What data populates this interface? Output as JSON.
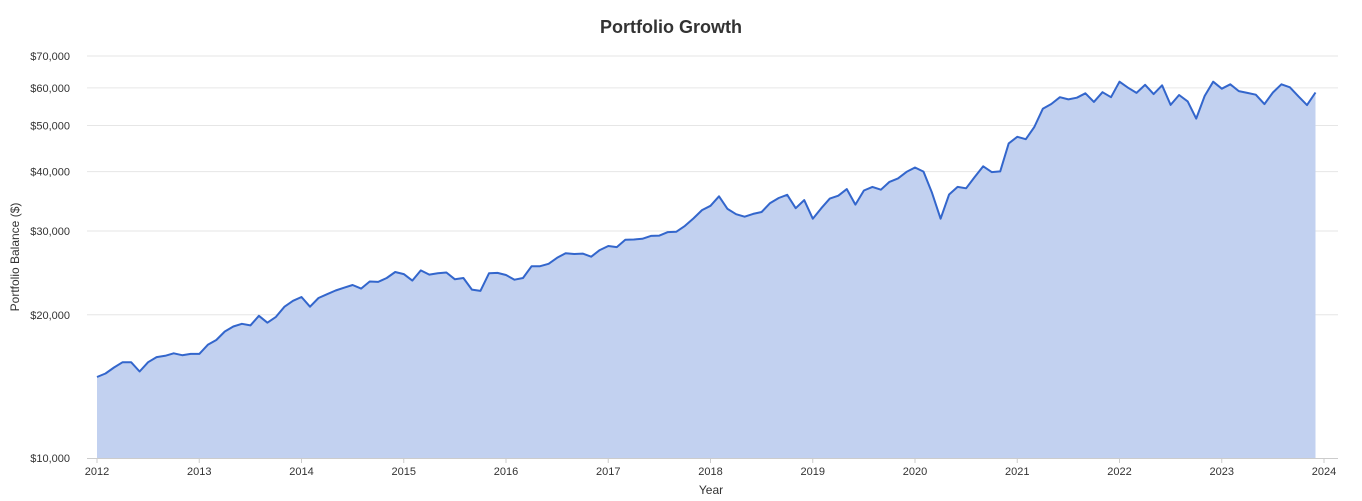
{
  "chart_data": {
    "type": "area",
    "title": "Portfolio Growth",
    "xlabel": "Year",
    "ylabel": "Portfolio Balance ($)",
    "y_scale": "log",
    "ylim": [
      10000,
      70000
    ],
    "xlim": [
      "2012-01",
      "2024-01"
    ],
    "grid": true,
    "legend": "none",
    "colors": {
      "line": "#3366cc",
      "fill": "#c2d1f0",
      "grid": "#e6e6e6",
      "axis": "#cccccc"
    },
    "y_ticks": [
      {
        "value": 10000,
        "label": "$10,000"
      },
      {
        "value": 20000,
        "label": "$20,000"
      },
      {
        "value": 30000,
        "label": "$30,000"
      },
      {
        "value": 40000,
        "label": "$40,000"
      },
      {
        "value": 50000,
        "label": "$50,000"
      },
      {
        "value": 60000,
        "label": "$60,000"
      },
      {
        "value": 70000,
        "label": "$70,000"
      }
    ],
    "x_ticks": [
      "2012",
      "2013",
      "2014",
      "2015",
      "2016",
      "2017",
      "2018",
      "2019",
      "2020",
      "2021",
      "2022",
      "2023",
      "2024"
    ],
    "series": [
      {
        "values": [
          {
            "x": "2012-01",
            "y": 14800
          },
          {
            "x": "2012-02",
            "y": 15050
          },
          {
            "x": "2012-03",
            "y": 15500
          },
          {
            "x": "2012-04",
            "y": 15900
          },
          {
            "x": "2012-05",
            "y": 15900
          },
          {
            "x": "2012-06",
            "y": 15200
          },
          {
            "x": "2012-07",
            "y": 15900
          },
          {
            "x": "2012-08",
            "y": 16300
          },
          {
            "x": "2012-09",
            "y": 16400
          },
          {
            "x": "2012-10",
            "y": 16600
          },
          {
            "x": "2012-11",
            "y": 16450
          },
          {
            "x": "2012-12",
            "y": 16550
          },
          {
            "x": "2013-01",
            "y": 16550
          },
          {
            "x": "2013-02",
            "y": 17300
          },
          {
            "x": "2013-03",
            "y": 17700
          },
          {
            "x": "2013-04",
            "y": 18450
          },
          {
            "x": "2013-05",
            "y": 18900
          },
          {
            "x": "2013-06",
            "y": 19150
          },
          {
            "x": "2013-07",
            "y": 19000
          },
          {
            "x": "2013-08",
            "y": 19900
          },
          {
            "x": "2013-09",
            "y": 19250
          },
          {
            "x": "2013-10",
            "y": 19800
          },
          {
            "x": "2013-11",
            "y": 20800
          },
          {
            "x": "2013-12",
            "y": 21400
          },
          {
            "x": "2014-01",
            "y": 21800
          },
          {
            "x": "2014-02",
            "y": 20800
          },
          {
            "x": "2014-03",
            "y": 21700
          },
          {
            "x": "2014-04",
            "y": 22100
          },
          {
            "x": "2014-05",
            "y": 22500
          },
          {
            "x": "2014-06",
            "y": 22800
          },
          {
            "x": "2014-07",
            "y": 23100
          },
          {
            "x": "2014-08",
            "y": 22700
          },
          {
            "x": "2014-09",
            "y": 23500
          },
          {
            "x": "2014-10",
            "y": 23450
          },
          {
            "x": "2014-11",
            "y": 23900
          },
          {
            "x": "2014-12",
            "y": 24600
          },
          {
            "x": "2015-01",
            "y": 24350
          },
          {
            "x": "2015-02",
            "y": 23600
          },
          {
            "x": "2015-03",
            "y": 24800
          },
          {
            "x": "2015-04",
            "y": 24300
          },
          {
            "x": "2015-05",
            "y": 24450
          },
          {
            "x": "2015-06",
            "y": 24550
          },
          {
            "x": "2015-07",
            "y": 23750
          },
          {
            "x": "2015-08",
            "y": 23900
          },
          {
            "x": "2015-09",
            "y": 22600
          },
          {
            "x": "2015-10",
            "y": 22450
          },
          {
            "x": "2015-11",
            "y": 24450
          },
          {
            "x": "2015-12",
            "y": 24500
          },
          {
            "x": "2016-01",
            "y": 24250
          },
          {
            "x": "2016-02",
            "y": 23700
          },
          {
            "x": "2016-03",
            "y": 23900
          },
          {
            "x": "2016-04",
            "y": 25300
          },
          {
            "x": "2016-05",
            "y": 25300
          },
          {
            "x": "2016-06",
            "y": 25600
          },
          {
            "x": "2016-07",
            "y": 26350
          },
          {
            "x": "2016-08",
            "y": 26950
          },
          {
            "x": "2016-09",
            "y": 26850
          },
          {
            "x": "2016-10",
            "y": 26900
          },
          {
            "x": "2016-11",
            "y": 26500
          },
          {
            "x": "2016-12",
            "y": 27350
          },
          {
            "x": "2017-01",
            "y": 27900
          },
          {
            "x": "2017-02",
            "y": 27750
          },
          {
            "x": "2017-03",
            "y": 28750
          },
          {
            "x": "2017-04",
            "y": 28800
          },
          {
            "x": "2017-05",
            "y": 28900
          },
          {
            "x": "2017-06",
            "y": 29300
          },
          {
            "x": "2017-07",
            "y": 29350
          },
          {
            "x": "2017-08",
            "y": 29850
          },
          {
            "x": "2017-09",
            "y": 29900
          },
          {
            "x": "2017-10",
            "y": 30750
          },
          {
            "x": "2017-11",
            "y": 31900
          },
          {
            "x": "2017-12",
            "y": 33200
          },
          {
            "x": "2018-01",
            "y": 33900
          },
          {
            "x": "2018-02",
            "y": 35500
          },
          {
            "x": "2018-03",
            "y": 33400
          },
          {
            "x": "2018-04",
            "y": 32550
          },
          {
            "x": "2018-05",
            "y": 32150
          },
          {
            "x": "2018-06",
            "y": 32600
          },
          {
            "x": "2018-07",
            "y": 32900
          },
          {
            "x": "2018-08",
            "y": 34350
          },
          {
            "x": "2018-09",
            "y": 35200
          },
          {
            "x": "2018-10",
            "y": 35750
          },
          {
            "x": "2018-11",
            "y": 33500
          },
          {
            "x": "2018-12",
            "y": 34850
          },
          {
            "x": "2019-01",
            "y": 31850
          },
          {
            "x": "2019-02",
            "y": 33500
          },
          {
            "x": "2019-03",
            "y": 35100
          },
          {
            "x": "2019-04",
            "y": 35600
          },
          {
            "x": "2019-05",
            "y": 36750
          },
          {
            "x": "2019-06",
            "y": 34100
          },
          {
            "x": "2019-07",
            "y": 36500
          },
          {
            "x": "2019-08",
            "y": 37150
          },
          {
            "x": "2019-09",
            "y": 36650
          },
          {
            "x": "2019-10",
            "y": 38050
          },
          {
            "x": "2019-11",
            "y": 38700
          },
          {
            "x": "2019-12",
            "y": 39950
          },
          {
            "x": "2020-01",
            "y": 40800
          },
          {
            "x": "2020-02",
            "y": 40000
          },
          {
            "x": "2020-03",
            "y": 36100
          },
          {
            "x": "2020-04",
            "y": 31850
          },
          {
            "x": "2020-05",
            "y": 35800
          },
          {
            "x": "2020-06",
            "y": 37150
          },
          {
            "x": "2020-07",
            "y": 36900
          },
          {
            "x": "2020-08",
            "y": 38950
          },
          {
            "x": "2020-09",
            "y": 41050
          },
          {
            "x": "2020-10",
            "y": 39900
          },
          {
            "x": "2020-11",
            "y": 40050
          },
          {
            "x": "2020-12",
            "y": 45850
          },
          {
            "x": "2021-01",
            "y": 47350
          },
          {
            "x": "2021-02",
            "y": 46800
          },
          {
            "x": "2021-03",
            "y": 49650
          },
          {
            "x": "2021-04",
            "y": 54200
          },
          {
            "x": "2021-05",
            "y": 55500
          },
          {
            "x": "2021-06",
            "y": 57350
          },
          {
            "x": "2021-07",
            "y": 56750
          },
          {
            "x": "2021-08",
            "y": 57200
          },
          {
            "x": "2021-09",
            "y": 58450
          },
          {
            "x": "2021-10",
            "y": 56050
          },
          {
            "x": "2021-11",
            "y": 58750
          },
          {
            "x": "2021-12",
            "y": 57350
          },
          {
            "x": "2022-01",
            "y": 61800
          },
          {
            "x": "2022-02",
            "y": 60050
          },
          {
            "x": "2022-03",
            "y": 58550
          },
          {
            "x": "2022-04",
            "y": 60900
          },
          {
            "x": "2022-05",
            "y": 58200
          },
          {
            "x": "2022-06",
            "y": 60750
          },
          {
            "x": "2022-07",
            "y": 55250
          },
          {
            "x": "2022-08",
            "y": 57950
          },
          {
            "x": "2022-09",
            "y": 56200
          },
          {
            "x": "2022-10",
            "y": 51700
          },
          {
            "x": "2022-11",
            "y": 57700
          },
          {
            "x": "2022-12",
            "y": 61800
          },
          {
            "x": "2023-01",
            "y": 59750
          },
          {
            "x": "2023-02",
            "y": 61050
          },
          {
            "x": "2023-03",
            "y": 59050
          },
          {
            "x": "2023-04",
            "y": 58550
          },
          {
            "x": "2023-05",
            "y": 58050
          },
          {
            "x": "2023-06",
            "y": 55450
          },
          {
            "x": "2023-07",
            "y": 58650
          },
          {
            "x": "2023-08",
            "y": 61050
          },
          {
            "x": "2023-09",
            "y": 60150
          },
          {
            "x": "2023-10",
            "y": 57600
          },
          {
            "x": "2023-11",
            "y": 55200
          },
          {
            "x": "2023-12",
            "y": 58650
          }
        ]
      }
    ]
  }
}
